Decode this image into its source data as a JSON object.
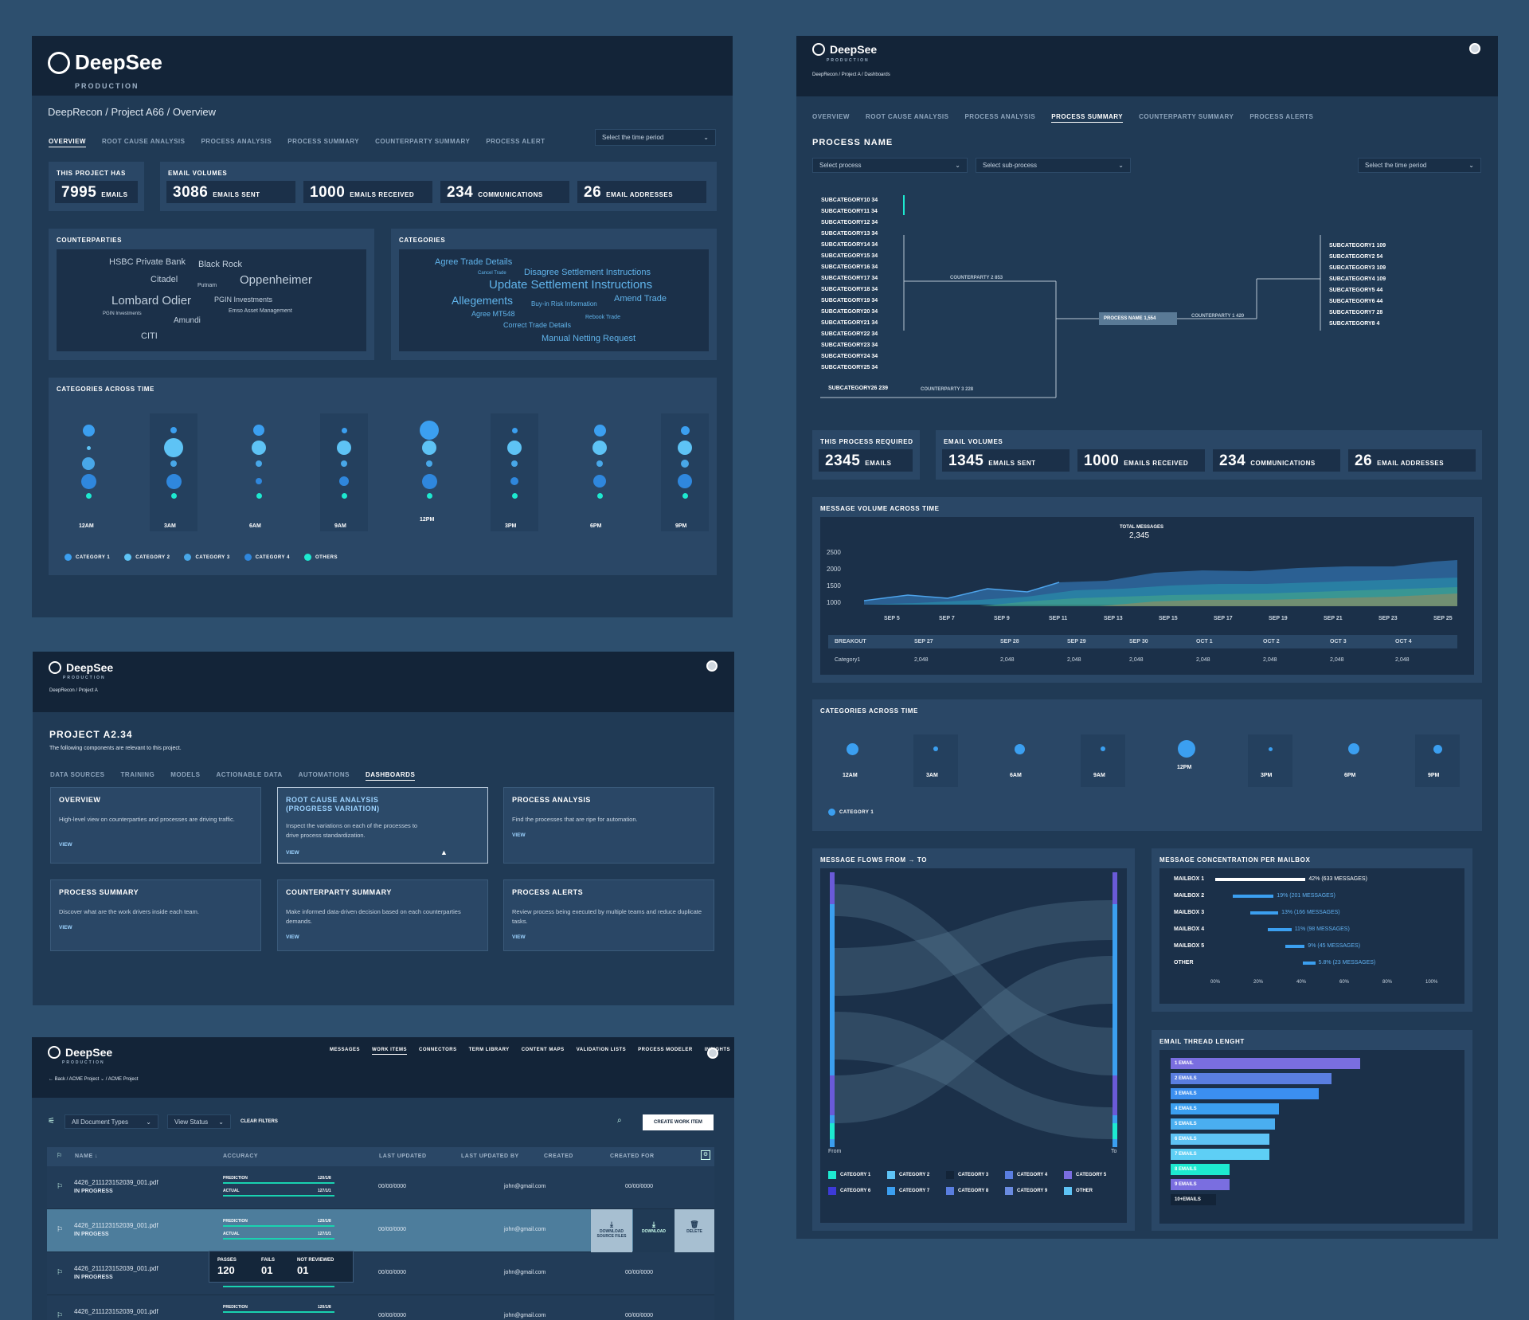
{
  "brand": {
    "name": "DeepSee",
    "env": "PRODUCTION"
  },
  "s1": {
    "breadcrumb": "DeepRecon / Project A66 / Overview",
    "tabs": [
      "OVERVIEW",
      "ROOT CAUSE ANALYSIS",
      "PROCESS ANALYSIS",
      "PROCESS SUMMARY",
      "COUNTERPARTY SUMMARY",
      "PROCESS ALERT"
    ],
    "time_select": "Select the time period",
    "project_has": {
      "title": "THIS PROJECT HAS",
      "value": "7995",
      "unit": "EMAILS"
    },
    "email_volumes": {
      "title": "EMAIL VOLUMES",
      "items": [
        {
          "value": "3086",
          "unit": "EMAILS SENT"
        },
        {
          "value": "1000",
          "unit": "EMAILS RECEIVED"
        },
        {
          "value": "234",
          "unit": "COMMUNICATIONS"
        },
        {
          "value": "26",
          "unit": "EMAIL ADDRESSES"
        }
      ]
    },
    "counterparties": {
      "title": "COUNTERPARTIES",
      "words": [
        "HSBC Private Bank",
        "Black Rock",
        "Citadel",
        "Putnam",
        "Oppenheimer",
        "Lombard Odier",
        "PGIN Investments",
        "PGIN Investments",
        "Emso Asset Management",
        "Amundi",
        "CITI"
      ]
    },
    "categories": {
      "title": "CATEGORIES",
      "words": [
        "Agree Trade Details",
        "Cancel Trade",
        "Disagree Settlement Instructions",
        "Update Settlement Instructions",
        "Allegements",
        "Buy-in Risk Information",
        "Amend Trade",
        "Agree MT548",
        "Rebook Trade",
        "Correct Trade Details",
        "Manual Netting Request"
      ]
    },
    "across_time": {
      "title": "CATEGORIES ACROSS TIME",
      "times": [
        "12AM",
        "3AM",
        "6AM",
        "9AM",
        "12PM",
        "3PM",
        "6PM",
        "9PM"
      ],
      "legend": [
        "CATEGORY 1",
        "CATEGORY 2",
        "CATEGORY 3",
        "CATEGORY 4",
        "OTHERS"
      ]
    }
  },
  "s2": {
    "breadcrumb": "DeepRecon / Project A",
    "title": "PROJECT A2.34",
    "subtitle": "The following components are relevant to this project.",
    "tabs": [
      "DATA SOURCES",
      "TRAINING",
      "MODELS",
      "ACTIONABLE DATA",
      "AUTOMATIONS",
      "DASHBOARDS"
    ],
    "cards": [
      {
        "title": "OVERVIEW",
        "desc": "High-level view on counterparties and processes are driving traffic.",
        "link": "VIEW"
      },
      {
        "title": "ROOT CAUSE ANALYSIS (PROGRESS VARIATION)",
        "desc": "Inspect the variations on each of the processes to drive process standardization.",
        "link": "VIEW"
      },
      {
        "title": "PROCESS ANALYSIS",
        "desc": "Find the processes that are ripe for automation.",
        "link": "VIEW"
      },
      {
        "title": "PROCESS SUMMARY",
        "desc": "Discover what are the work drivers inside each team.",
        "link": "VIEW"
      },
      {
        "title": "COUNTERPARTY SUMMARY",
        "desc": "Make informed data-driven decision based on each counterparties demands.",
        "link": "VIEW"
      },
      {
        "title": "PROCESS ALERTS",
        "desc": "Review process being executed by multiple teams and reduce duplicate tasks.",
        "link": "VIEW"
      }
    ]
  },
  "s3": {
    "nav": [
      "MESSAGES",
      "WORK ITEMS",
      "CONNECTORS",
      "TERM LIBRARY",
      "CONTENT MAPS",
      "VALIDATION LISTS",
      "PROCESS MODELER",
      "INSIGHTS"
    ],
    "breadcrumb": "← Back / ACME Project ⌄ / ACME Project",
    "filters": {
      "doc_types": "All Document Types",
      "status": "View Status",
      "clear": "CLEAR FILTERS",
      "create": "CREATE WORK ITEM"
    },
    "columns": [
      "NAME ↓",
      "ACCURACY",
      "LAST UPDATED",
      "LAST UPDATED BY",
      "CREATED",
      "CREATED FOR"
    ],
    "rows": [
      {
        "name": "4426_211123152039_001.pdf",
        "status": "IN PROGRESS",
        "pred": "120/1/8",
        "actual": "127/1/1",
        "updated": "00/00/0000",
        "by": "john@gmail.com",
        "created_for": "00/00/0000"
      },
      {
        "name": "4426_211123152039_001.pdf",
        "status": "IN PROGESS",
        "pred": "120/1/8",
        "actual": "127/1/1",
        "updated": "00/00/0000",
        "by": "john@gmail.com",
        "created_for": "00/00/0000"
      },
      {
        "name": "4426_211123152039_001.pdf",
        "status": "IN PROGRESS",
        "pred": "",
        "actual": "",
        "updated": "00/00/0000",
        "by": "john@gmail.com",
        "created_for": "00/00/0000"
      },
      {
        "name": "4426_211123152039_001.pdf",
        "status": "",
        "pred": "120/1/8",
        "actual": "",
        "updated": "00/00/0000",
        "by": "john@gmail.com",
        "created_for": "00/00/0000"
      }
    ],
    "labels": {
      "prediction": "PREDICTION",
      "actual": "ACTUAL"
    },
    "actions": [
      "DOWNLOAD SOURCE FILES",
      "DOWNLOAD",
      "DELETE"
    ],
    "tooltip": {
      "passes_label": "PASSES",
      "passes": "120",
      "fails_label": "FAILS",
      "fails": "01",
      "nr_label": "NOT REVIEWED",
      "nr": "01"
    }
  },
  "s4": {
    "breadcrumb": "DeepRecon / Project A / Dashboards",
    "tabs": [
      "OVERVIEW",
      "ROOT CAUSE ANALYSIS",
      "PROCESS ANALYSIS",
      "PROCESS SUMMARY",
      "COUNTERPARTY SUMMARY",
      "PROCESS ALERTS"
    ],
    "title": "PROCESS NAME",
    "selects": [
      "Select process",
      "Select sub-process",
      "Select the time period"
    ],
    "left_subcats": [
      "SUBCATEGORY10 34",
      "SUBCATEGORY11 34",
      "SUBCATEGORY12 34",
      "SUBCATEGORY13 34",
      "SUBCATEGORY14 34",
      "SUBCATEGORY15 34",
      "SUBCATEGORY16 34",
      "SUBCATEGORY17 34",
      "SUBCATEGORY18 34",
      "SUBCATEGORY19 34",
      "SUBCATEGORY20 34",
      "SUBCATEGORY21 34",
      "SUBCATEGORY22 34",
      "SUBCATEGORY23 34",
      "SUBCATEGORY24 34",
      "SUBCATEGORY25 34"
    ],
    "subcat26": "SUBCATEGORY26 239",
    "right_subcats": [
      "SUBCATEGORY1 109",
      "SUBCATEGORY2 54",
      "SUBCATEGORY3 109",
      "SUBCATEGORY4 109",
      "SUBCATEGORY5 44",
      "SUBCATEGORY6 44",
      "SUBCATEGORY7 28",
      "SUBCATEGORY8 4"
    ],
    "cp2": "COUNTERPARTY 2 853",
    "cp3": "COUNTERPARTY 3 228",
    "cp1": "COUNTERPARTY 1 420",
    "proc": "PROCESS NAME 1,554",
    "process_required": {
      "title": "THIS PROCESS REQUIRED",
      "value": "2345",
      "unit": "EMAILS"
    },
    "email_volumes": {
      "title": "EMAIL VOLUMES",
      "items": [
        {
          "value": "1345",
          "unit": "EMAILS SENT"
        },
        {
          "value": "1000",
          "unit": "EMAILS RECEIVED"
        },
        {
          "value": "234",
          "unit": "COMMUNICATIONS"
        },
        {
          "value": "26",
          "unit": "EMAIL ADDRESSES"
        }
      ]
    },
    "msg_volume": {
      "title": "MESSAGE VOLUME ACROSS TIME",
      "total_label": "TOTAL MESSAGES",
      "total": "2,345",
      "yticks": [
        "2500",
        "2000",
        "1500",
        "1000"
      ],
      "xticks": [
        "SEP 5",
        "SEP 7",
        "SEP 9",
        "SEP 11",
        "SEP 13",
        "SEP 15",
        "SEP 17",
        "SEP 19",
        "SEP 21",
        "SEP 23",
        "SEP 25"
      ],
      "breakout": [
        "BREAKOUT",
        "SEP 27",
        "SEP 28",
        "SEP 29",
        "SEP 30",
        "OCT 1",
        "OCT 2",
        "OCT 3",
        "OCT 4"
      ],
      "breakout_row": [
        "Category1",
        "2,048",
        "2,048",
        "2,048",
        "2,048",
        "2,048",
        "2,048",
        "2,048",
        "2,048"
      ]
    },
    "cat_time": {
      "title": "CATEGORIES ACROSS TIME",
      "times": [
        "12AM",
        "3AM",
        "6AM",
        "9AM",
        "12PM",
        "3PM",
        "6PM",
        "9PM"
      ],
      "legend": "CATEGORY 1"
    },
    "flows": {
      "title": "MESSAGE FLOWS FROM → TO",
      "from": "From",
      "to": "To",
      "legend": [
        "CATEGORY 1",
        "CATEGORY 2",
        "CATEGORY 3",
        "CATEGORY 4",
        "CATEGORY 5",
        "CATEGORY 6",
        "CATEGORY 7",
        "CATEGORY 8",
        "CATEGORY 9",
        "OTHER"
      ]
    },
    "mailbox": {
      "title": "MESSAGE CONCENTRATION PER MAILBOX",
      "items": [
        {
          "name": "MAILBOX 1",
          "label": "42% (633 MESSAGES)",
          "pct": 42
        },
        {
          "name": "MAILBOX 2",
          "label": "19% (201 MESSAGES)",
          "pct": 19
        },
        {
          "name": "MAILBOX 3",
          "label": "13% (166 MESSAGES)",
          "pct": 13
        },
        {
          "name": "MAILBOX 4",
          "label": "11% (98 MESSAGES)",
          "pct": 11
        },
        {
          "name": "MAILBOX 5",
          "label": "9% (45 MESSAGES)",
          "pct": 9
        },
        {
          "name": "OTHER",
          "label": "5.8% (23 MESSAGES)",
          "pct": 5.8
        }
      ],
      "xticks": [
        "00%",
        "20%",
        "40%",
        "60%",
        "80%",
        "100%"
      ]
    },
    "thread": {
      "title": "EMAIL THREAD LENGHT",
      "items": [
        "1 EMAIL",
        "2 EMAILS",
        "3 EMAILS",
        "4 EMAILS",
        "5 EMAILS",
        "6 EMAILS",
        "7 EMAILS",
        "8 EMAILS",
        "9 EMAILS",
        "10+EMAILS"
      ]
    }
  }
}
